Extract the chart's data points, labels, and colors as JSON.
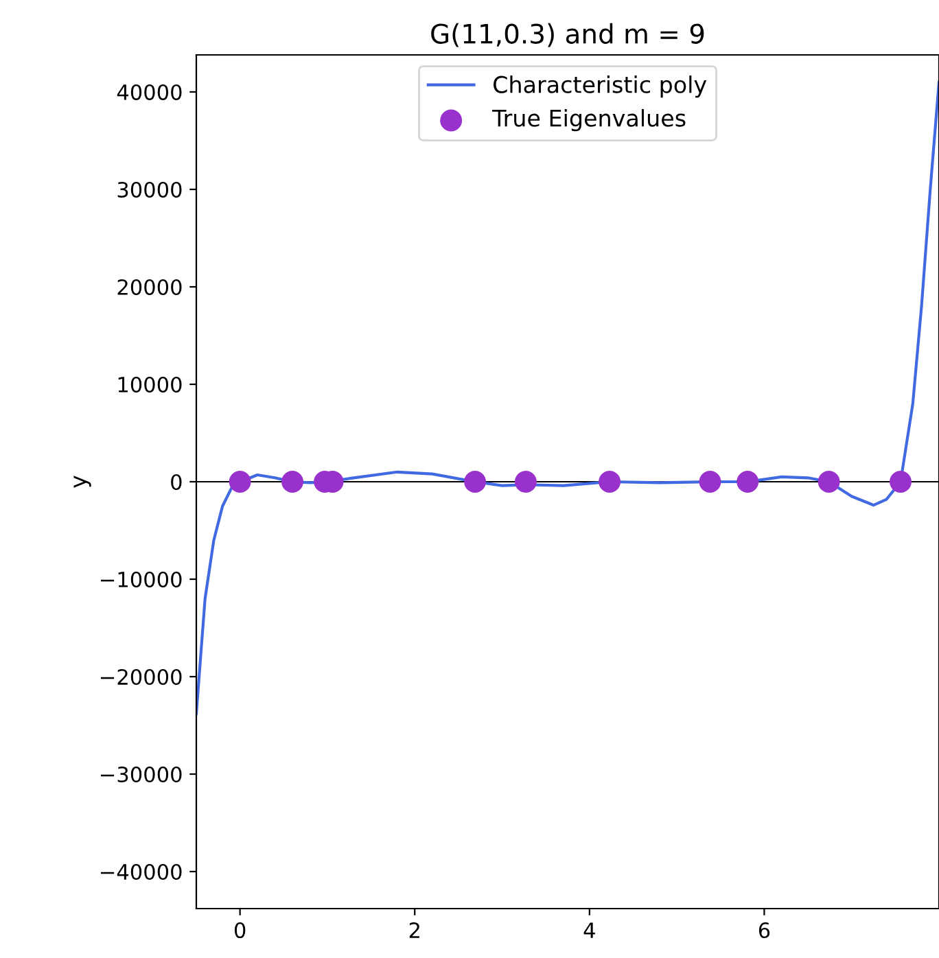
{
  "chart_data": {
    "type": "line",
    "title": "G(11,0.3) and m = 9",
    "ylabel": "y",
    "xlim": [
      -0.5,
      8.0
    ],
    "xticks": [
      0,
      2,
      4,
      6
    ],
    "ylim": [
      -43800,
      43800
    ],
    "yticks": [
      {
        "value": -40000,
        "label": "−40000"
      },
      {
        "value": -30000,
        "label": "−30000"
      },
      {
        "value": -20000,
        "label": "−20000"
      },
      {
        "value": -10000,
        "label": "−10000"
      },
      0,
      10000,
      20000,
      30000,
      40000
    ],
    "grid": false,
    "legend": "top",
    "ref_lines": [
      {
        "axis": "y",
        "value": 0,
        "color": "#000000"
      }
    ],
    "series": [
      {
        "name": "Characteristic poly",
        "color": "#4169e1",
        "marker": "none",
        "x": [
          -0.5,
          -0.4,
          -0.3,
          -0.2,
          -0.1,
          0,
          0.2,
          0.4,
          0.6,
          0.8,
          1.0,
          1.3,
          1.8,
          2.2,
          2.69,
          3.0,
          3.27,
          3.7,
          4.23,
          4.8,
          5.38,
          5.81,
          6.2,
          6.5,
          6.74,
          7.0,
          7.25,
          7.4,
          7.56,
          7.7,
          7.8,
          7.9,
          8.0
        ],
        "values": [
          -23800,
          -12000,
          -6000,
          -2500,
          -700,
          0,
          700,
          400,
          0,
          -100,
          0,
          400,
          1000,
          800,
          0,
          -400,
          -300,
          -400,
          0,
          -100,
          0,
          0,
          500,
          400,
          0,
          -1500,
          -2400,
          -1800,
          0,
          8000,
          18000,
          30000,
          41000
        ]
      },
      {
        "name": "True Eigenvalues",
        "type": "scatter",
        "color": "#9932cc",
        "marker": "circle",
        "x": [
          0,
          0.6,
          0.97,
          1.06,
          2.69,
          3.27,
          4.23,
          5.38,
          5.81,
          6.74,
          7.56
        ],
        "values": [
          0,
          0,
          0,
          0,
          0,
          0,
          0,
          0,
          0,
          0,
          0
        ]
      }
    ]
  }
}
